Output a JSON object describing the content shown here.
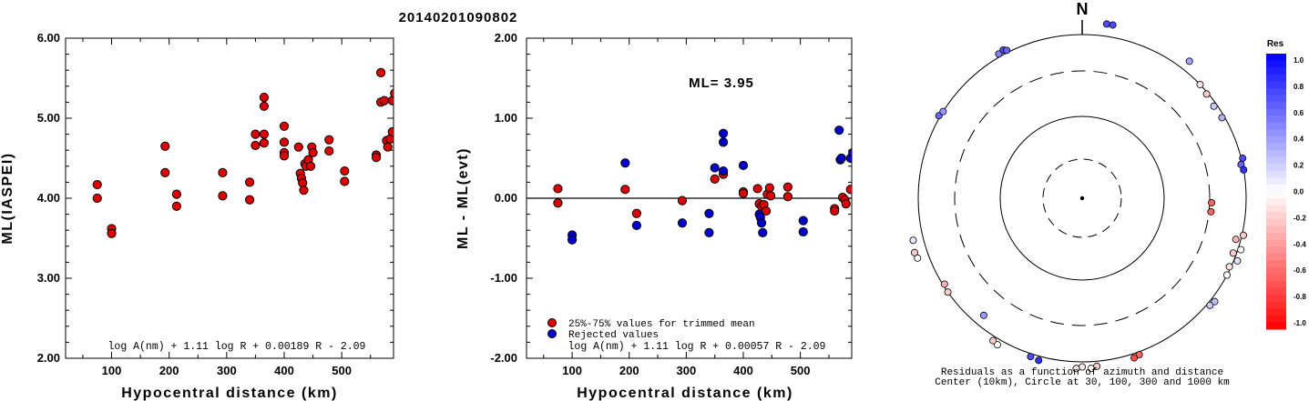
{
  "event_id": "20140201090802",
  "chart_data": [
    {
      "type": "scatter",
      "xlabel": "Hypocentral distance (km)",
      "ylabel": "ML(IASPEI)",
      "xlim": [
        20,
        590
      ],
      "ylim": [
        2.0,
        6.0
      ],
      "x_ticks": [
        "100",
        "200",
        "300",
        "400",
        "500"
      ],
      "y_ticks": [
        "2.00",
        "3.00",
        "4.00",
        "5.00",
        "6.00"
      ],
      "formula": "log A(nm) + 1.11 log R + 0.00189 R - 2.09",
      "series": [
        {
          "color": "#dd0000",
          "points": [
            [
              75,
              4.17
            ],
            [
              75,
              4.0
            ],
            [
              100,
              3.62
            ],
            [
              100,
              3.56
            ],
            [
              193,
              4.65
            ],
            [
              193,
              4.32
            ],
            [
              213,
              4.05
            ],
            [
              213,
              3.9
            ],
            [
              293,
              4.32
            ],
            [
              293,
              4.03
            ],
            [
              340,
              4.2
            ],
            [
              340,
              3.98
            ],
            [
              350,
              4.8
            ],
            [
              350,
              4.66
            ],
            [
              365,
              5.26
            ],
            [
              365,
              5.15
            ],
            [
              365,
              4.8
            ],
            [
              365,
              4.69
            ],
            [
              400,
              4.9
            ],
            [
              400,
              4.7
            ],
            [
              400,
              4.57
            ],
            [
              400,
              4.53
            ],
            [
              425,
              4.64
            ],
            [
              428,
              4.31
            ],
            [
              430,
              4.25
            ],
            [
              432,
              4.19
            ],
            [
              434,
              4.1
            ],
            [
              436,
              4.43
            ],
            [
              438,
              4.4
            ],
            [
              442,
              4.48
            ],
            [
              446,
              4.4
            ],
            [
              448,
              4.64
            ],
            [
              450,
              4.57
            ],
            [
              478,
              4.73
            ],
            [
              478,
              4.59
            ],
            [
              505,
              4.34
            ],
            [
              505,
              4.21
            ],
            [
              560,
              4.54
            ],
            [
              560,
              4.51
            ],
            [
              568,
              5.57
            ],
            [
              568,
              5.2
            ],
            [
              574,
              5.22
            ],
            [
              578,
              4.72
            ],
            [
              580,
              4.64
            ],
            [
              584,
              4.74
            ],
            [
              588,
              5.22
            ],
            [
              588,
              4.83
            ],
            [
              592,
              5.31
            ]
          ]
        }
      ]
    },
    {
      "type": "scatter",
      "xlabel": "Hypocentral distance (km)",
      "ylabel": "ML - ML(evt)",
      "xlim": [
        20,
        590
      ],
      "ylim": [
        -2.0,
        2.0
      ],
      "x_ticks": [
        "100",
        "200",
        "300",
        "400",
        "500"
      ],
      "y_ticks": [
        "-2.00",
        "-1.00",
        "0.00",
        "1.00",
        "2.00"
      ],
      "annotation": "ML= 3.95",
      "formula": "log A(nm) + 1.11 log R + 0.00057 R - 2.09",
      "series": [
        {
          "name": "25%-75% values for trimmed mean",
          "color": "#dd0000",
          "points": [
            [
              75,
              0.12
            ],
            [
              75,
              -0.06
            ],
            [
              193,
              0.11
            ],
            [
              213,
              -0.19
            ],
            [
              293,
              -0.03
            ],
            [
              350,
              0.24
            ],
            [
              365,
              0.3
            ],
            [
              400,
              0.08
            ],
            [
              400,
              0.06
            ],
            [
              425,
              0.12
            ],
            [
              428,
              -0.07
            ],
            [
              432,
              -0.1
            ],
            [
              436,
              -0.08
            ],
            [
              440,
              -0.16
            ],
            [
              442,
              0.05
            ],
            [
              446,
              0.13
            ],
            [
              448,
              0.03
            ],
            [
              478,
              0.14
            ],
            [
              478,
              0.02
            ],
            [
              560,
              -0.13
            ],
            [
              560,
              -0.16
            ],
            [
              574,
              0.01
            ],
            [
              578,
              -0.02
            ],
            [
              580,
              -0.07
            ],
            [
              588,
              0.11
            ]
          ]
        },
        {
          "name": "Rejected values",
          "color": "#0000cc",
          "points": [
            [
              100,
              -0.46
            ],
            [
              100,
              -0.52
            ],
            [
              193,
              0.44
            ],
            [
              213,
              -0.34
            ],
            [
              293,
              -0.31
            ],
            [
              340,
              -0.19
            ],
            [
              340,
              -0.43
            ],
            [
              350,
              0.38
            ],
            [
              365,
              0.81
            ],
            [
              365,
              0.7
            ],
            [
              365,
              0.34
            ],
            [
              400,
              0.41
            ],
            [
              428,
              -0.2
            ],
            [
              430,
              -0.24
            ],
            [
              432,
              -0.31
            ],
            [
              434,
              -0.43
            ],
            [
              505,
              -0.28
            ],
            [
              505,
              -0.42
            ],
            [
              568,
              0.85
            ],
            [
              570,
              0.48
            ],
            [
              572,
              0.5
            ],
            [
              588,
              0.5
            ],
            [
              592,
              0.57
            ]
          ]
        }
      ]
    },
    {
      "type": "scatter",
      "polar": true,
      "north_label": "N",
      "caption_line1": "Residuals as a function of azimuth and distance",
      "caption_line2": "Center (10km), Circle at 30, 100, 300 and 1000 km",
      "colorbar_title": "Res",
      "colorbar_labels": [
        "1.0",
        "0.8",
        "0.6",
        "0.4",
        "0.2",
        "0.0",
        "-0.2",
        "-0.4",
        "-0.6",
        "-0.8",
        "-1.0"
      ],
      "points_az_dist_res": [
        [
          8,
          1500,
          0.7
        ],
        [
          10,
          1500,
          0.7
        ],
        [
          38,
          1400,
          0.35
        ],
        [
          50,
          950,
          -0.2
        ],
        [
          46,
          1000,
          -0.1
        ],
        [
          55,
          900,
          0.2
        ],
        [
          60,
          920,
          0.3
        ],
        [
          78,
          950,
          0.6
        ],
        [
          80,
          1000,
          0.8
        ],
        [
          76,
          1050,
          0.7
        ],
        [
          92,
          320,
          -0.6
        ],
        [
          96,
          320,
          -0.6
        ],
        [
          105,
          850,
          -0.3
        ],
        [
          110,
          900,
          -0.2
        ],
        [
          115,
          950,
          -0.1
        ],
        [
          108,
          1100,
          0.0
        ],
        [
          112,
          1120,
          0.1
        ],
        [
          118,
          1000,
          0.0
        ],
        [
          103,
          1050,
          -0.2
        ],
        [
          130,
          1100,
          0.2
        ],
        [
          128,
          1150,
          0.25
        ],
        [
          160,
          1100,
          -0.6
        ],
        [
          162,
          1150,
          -0.7
        ],
        [
          175,
          1180,
          -0.2
        ],
        [
          177,
          1250,
          0.0
        ],
        [
          180,
          1180,
          -0.1
        ],
        [
          182,
          1250,
          -0.1
        ],
        [
          195,
          1150,
          0.8
        ],
        [
          198,
          1100,
          0.7
        ],
        [
          210,
          1200,
          0.0
        ],
        [
          212,
          1150,
          -0.2
        ],
        [
          220,
          700,
          0.4
        ],
        [
          235,
          1000,
          -0.2
        ],
        [
          238,
          950,
          -0.3
        ],
        [
          250,
          1450,
          0.0
        ],
        [
          252,
          1500,
          -0.2
        ],
        [
          256,
          1400,
          0.1
        ],
        [
          300,
          1050,
          0.6
        ],
        [
          302,
          1000,
          0.4
        ],
        [
          330,
          1100,
          0.5
        ],
        [
          332,
          1150,
          0.7
        ],
        [
          333,
          1080,
          0.6
        ]
      ]
    }
  ]
}
